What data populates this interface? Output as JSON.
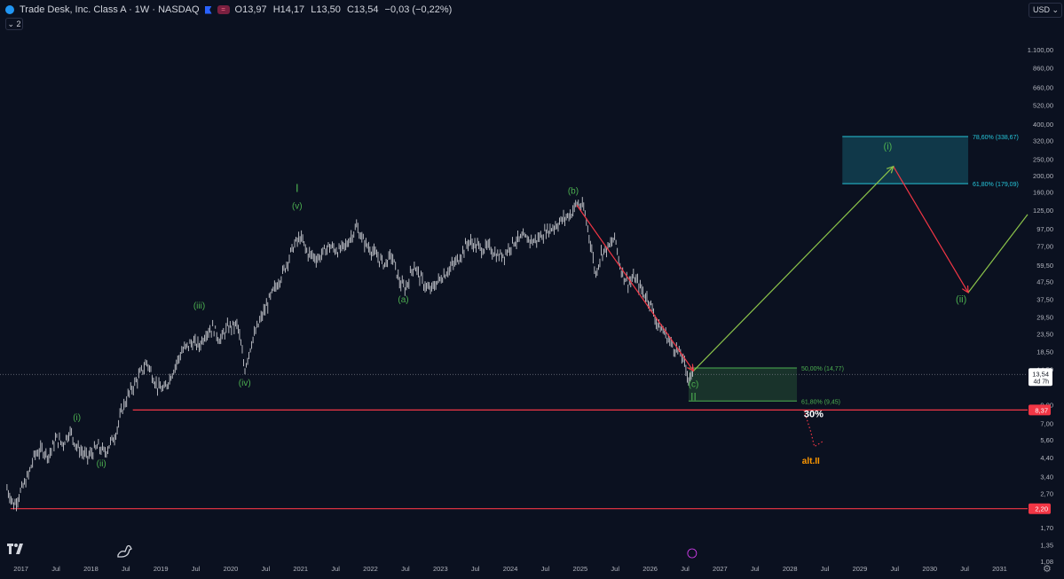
{
  "header": {
    "title": "Trade Desk, Inc. Class A · 1W · NASDAQ",
    "pill": "=",
    "open": "O13,97",
    "high": "H14,17",
    "low": "L13,50",
    "close": "C13,54",
    "change": "−0,03 (−0,22%)",
    "collapse_label": "⌄ 2"
  },
  "currency_button": "USD ⌄",
  "colors": {
    "background": "#0b1120",
    "price_bar": "#c8cad0",
    "wave_green": "#4caf50",
    "projection_green": "#8bc34a",
    "projection_red": "#f23645",
    "support_red": "#f23645",
    "box_teal": "#26c6da",
    "alt_orange": "#ff9800"
  },
  "chart_data": {
    "type": "line",
    "scale": "log",
    "xlim": [
      2016.7,
      2031.4
    ],
    "ylim": [
      1.08,
      1500
    ],
    "y_ticks": [
      {
        "v": 1100,
        "label": "1.100,00"
      },
      {
        "v": 860,
        "label": "860,00"
      },
      {
        "v": 660,
        "label": "660,00"
      },
      {
        "v": 520,
        "label": "520,00"
      },
      {
        "v": 400,
        "label": "400,00"
      },
      {
        "v": 320,
        "label": "320,00"
      },
      {
        "v": 250,
        "label": "250,00"
      },
      {
        "v": 200,
        "label": "200,00"
      },
      {
        "v": 160,
        "label": "160,00"
      },
      {
        "v": 125,
        "label": "125,00"
      },
      {
        "v": 97,
        "label": "97,00"
      },
      {
        "v": 77,
        "label": "77,00"
      },
      {
        "v": 59.5,
        "label": "59,50"
      },
      {
        "v": 47.5,
        "label": "47,50"
      },
      {
        "v": 37.5,
        "label": "37,50"
      },
      {
        "v": 29.5,
        "label": "29,50"
      },
      {
        "v": 23.5,
        "label": "23,50"
      },
      {
        "v": 18.5,
        "label": "18,50"
      },
      {
        "v": 14.5,
        "label": "14,50"
      },
      {
        "v": 9,
        "label": "9,00"
      },
      {
        "v": 7,
        "label": "7,00"
      },
      {
        "v": 5.6,
        "label": "5,60"
      },
      {
        "v": 4.4,
        "label": "4,40"
      },
      {
        "v": 3.4,
        "label": "3,40"
      },
      {
        "v": 2.7,
        "label": "2,70"
      },
      {
        "v": 1.7,
        "label": "1,70"
      },
      {
        "v": 1.35,
        "label": "1,35"
      },
      {
        "v": 1.08,
        "label": "1,08"
      }
    ],
    "x_ticks": [
      {
        "t": 2017,
        "label": "2017"
      },
      {
        "t": 2017.5,
        "label": "Jul"
      },
      {
        "t": 2018,
        "label": "2018"
      },
      {
        "t": 2018.5,
        "label": "Jul"
      },
      {
        "t": 2019,
        "label": "2019"
      },
      {
        "t": 2019.5,
        "label": "Jul"
      },
      {
        "t": 2020,
        "label": "2020"
      },
      {
        "t": 2020.5,
        "label": "Jul"
      },
      {
        "t": 2021,
        "label": "2021"
      },
      {
        "t": 2021.5,
        "label": "Jul"
      },
      {
        "t": 2022,
        "label": "2022"
      },
      {
        "t": 2022.5,
        "label": "Jul"
      },
      {
        "t": 2023,
        "label": "2023"
      },
      {
        "t": 2023.5,
        "label": "Jul"
      },
      {
        "t": 2024,
        "label": "2024"
      },
      {
        "t": 2024.5,
        "label": "Jul"
      },
      {
        "t": 2025,
        "label": "2025"
      },
      {
        "t": 2025.5,
        "label": "Jul"
      },
      {
        "t": 2026,
        "label": "2026"
      },
      {
        "t": 2026.5,
        "label": "Jul"
      },
      {
        "t": 2027,
        "label": "2027"
      },
      {
        "t": 2027.5,
        "label": "Jul"
      },
      {
        "t": 2028,
        "label": "2028"
      },
      {
        "t": 2028.5,
        "label": "Jul"
      },
      {
        "t": 2029,
        "label": "2029"
      },
      {
        "t": 2029.5,
        "label": "Jul"
      },
      {
        "t": 2030,
        "label": "2030"
      },
      {
        "t": 2030.5,
        "label": "Jul"
      },
      {
        "t": 2031,
        "label": "2031"
      }
    ],
    "price_path": [
      [
        2016.8,
        2.9
      ],
      [
        2016.9,
        2.3
      ],
      [
        2017.0,
        2.8
      ],
      [
        2017.1,
        3.4
      ],
      [
        2017.2,
        4.6
      ],
      [
        2017.3,
        4.9
      ],
      [
        2017.4,
        4.5
      ],
      [
        2017.5,
        5.7
      ],
      [
        2017.6,
        5.3
      ],
      [
        2017.7,
        6.3
      ],
      [
        2017.8,
        5.1
      ],
      [
        2017.95,
        4.4
      ],
      [
        2018.1,
        5.1
      ],
      [
        2018.2,
        4.7
      ],
      [
        2018.35,
        6.0
      ],
      [
        2018.45,
        8.5
      ],
      [
        2018.55,
        10.5
      ],
      [
        2018.7,
        13.5
      ],
      [
        2018.8,
        16.0
      ],
      [
        2018.95,
        11.5
      ],
      [
        2019.05,
        11.0
      ],
      [
        2019.15,
        13.5
      ],
      [
        2019.3,
        18.5
      ],
      [
        2019.45,
        21.0
      ],
      [
        2019.55,
        20.0
      ],
      [
        2019.65,
        24.0
      ],
      [
        2019.75,
        25.5
      ],
      [
        2019.85,
        21.5
      ],
      [
        2019.95,
        25.5
      ],
      [
        2020.1,
        26.5
      ],
      [
        2020.2,
        14.5
      ],
      [
        2020.3,
        21.0
      ],
      [
        2020.45,
        30.0
      ],
      [
        2020.6,
        41.0
      ],
      [
        2020.75,
        54.0
      ],
      [
        2020.9,
        77.0
      ],
      [
        2021.0,
        87.0
      ],
      [
        2021.1,
        70.0
      ],
      [
        2021.25,
        65.0
      ],
      [
        2021.4,
        77.0
      ],
      [
        2021.55,
        72.0
      ],
      [
        2021.65,
        78.0
      ],
      [
        2021.8,
        100.0
      ],
      [
        2021.9,
        82.0
      ],
      [
        2022.05,
        70.0
      ],
      [
        2022.2,
        60.0
      ],
      [
        2022.3,
        68.0
      ],
      [
        2022.42,
        47.0
      ],
      [
        2022.5,
        43.0
      ],
      [
        2022.62,
        60.0
      ],
      [
        2022.75,
        47.0
      ],
      [
        2022.85,
        42.0
      ],
      [
        2022.95,
        47.0
      ],
      [
        2023.1,
        55.0
      ],
      [
        2023.25,
        64.0
      ],
      [
        2023.4,
        82.0
      ],
      [
        2023.5,
        78.0
      ],
      [
        2023.6,
        74.0
      ],
      [
        2023.7,
        76.0
      ],
      [
        2023.82,
        67.0
      ],
      [
        2023.92,
        69.0
      ],
      [
        2024.05,
        82.0
      ],
      [
        2024.2,
        86.0
      ],
      [
        2024.35,
        82.0
      ],
      [
        2024.5,
        93.0
      ],
      [
        2024.62,
        100.0
      ],
      [
        2024.75,
        110.0
      ],
      [
        2024.88,
        121.0
      ],
      [
        2024.95,
        138.0
      ],
      [
        2025.05,
        128.0
      ],
      [
        2025.15,
        80.0
      ],
      [
        2025.22,
        52.0
      ],
      [
        2025.3,
        70.0
      ],
      [
        2025.4,
        75.0
      ],
      [
        2025.5,
        86.0
      ],
      [
        2025.58,
        56.0
      ],
      [
        2025.68,
        47.0
      ],
      [
        2025.78,
        50.0
      ],
      [
        2025.9,
        41.0
      ],
      [
        2026.0,
        36.0
      ],
      [
        2026.1,
        27.0
      ],
      [
        2026.2,
        24.0
      ],
      [
        2026.32,
        20.0
      ],
      [
        2026.45,
        17.5
      ],
      [
        2026.55,
        13.0
      ],
      [
        2026.62,
        13.54
      ]
    ],
    "support_levels": [
      {
        "price": 8.37,
        "label": "8,37",
        "t_start": 2018.6
      },
      {
        "price": 2.2,
        "label": "2,20",
        "t_start": 2016.85
      }
    ],
    "current_price": {
      "label": "13,54",
      "sub": "4d 7h",
      "price": 13.54
    },
    "wave_labels": [
      {
        "text": "I",
        "t": 2020.95,
        "price": 160,
        "size": 13
      },
      {
        "text": "(v)",
        "t": 2020.95,
        "price": 127,
        "size": 10
      },
      {
        "text": "(iii)",
        "t": 2019.55,
        "price": 33,
        "size": 10
      },
      {
        "text": "(iv)",
        "t": 2020.2,
        "price": 11.6,
        "size": 10
      },
      {
        "text": "(i)",
        "t": 2017.8,
        "price": 7.3,
        "size": 10
      },
      {
        "text": "(ii)",
        "t": 2018.15,
        "price": 3.9,
        "size": 10
      },
      {
        "text": "(a)",
        "t": 2022.47,
        "price": 36,
        "size": 10
      },
      {
        "text": "(b)",
        "t": 2024.9,
        "price": 156,
        "size": 10
      },
      {
        "text": "(c)",
        "t": 2026.62,
        "price": 11.4,
        "size": 10
      },
      {
        "text": "II",
        "t": 2026.62,
        "price": 9.55,
        "size": 12
      },
      {
        "text": "(i)",
        "t": 2029.4,
        "price": 285,
        "size": 11
      },
      {
        "text": "(ii)",
        "t": 2030.45,
        "price": 36,
        "size": 11
      }
    ],
    "fib_zones": [
      {
        "t0": 2026.55,
        "t1": 2028.1,
        "top": 14.77,
        "bottom": 9.45,
        "top_label": "50,00% (14,77)",
        "bottom_label": "61,80% (9,45)",
        "color": "green"
      },
      {
        "t0": 2028.75,
        "t1": 2030.55,
        "top": 338.67,
        "bottom": 179.09,
        "top_label": "78,60% (338,67)",
        "bottom_label": "61,80% (179,09)",
        "color": "teal"
      }
    ],
    "projection": {
      "wave_b_to_c": [
        [
          2024.95,
          134
        ],
        [
          2026.62,
          14.2
        ]
      ],
      "up_leg": [
        [
          2026.62,
          14.2
        ],
        [
          2029.48,
          226
        ]
      ],
      "down_leg": [
        [
          2029.48,
          226
        ],
        [
          2030.55,
          41
        ]
      ],
      "final_leg": [
        [
          2030.55,
          41
        ],
        [
          2031.4,
          118
        ]
      ]
    },
    "alt_path": [
      [
        2028.2,
        8.37
      ],
      [
        2028.3,
        6.2
      ],
      [
        2028.35,
        5.1
      ],
      [
        2028.48,
        5.5
      ]
    ],
    "annotations": [
      {
        "text": "30%",
        "t": 2028.2,
        "price": 7.6
      },
      {
        "text": "alt.II",
        "t": 2028.3,
        "price": 4.05
      }
    ]
  }
}
